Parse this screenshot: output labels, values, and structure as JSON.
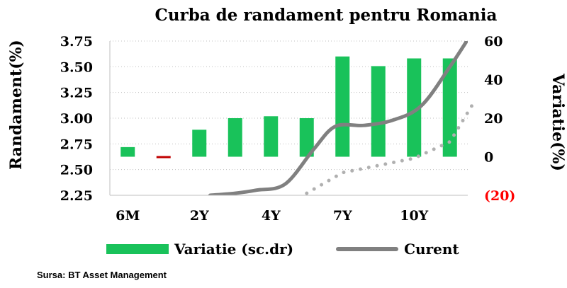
{
  "title": "Curba de randament pentru Romania",
  "source": "Sursa: BT Asset Management",
  "colors": {
    "bar": "#19c25a",
    "negative_bar": "#c00000",
    "line": "#808080",
    "dotted": "#b0b0b0",
    "grid": "#bfbfbf",
    "negative_tick": "#ff0000"
  },
  "chart_data": {
    "type": "bar",
    "title": "Curba de randament pentru Romania",
    "ylabel_left": "Randament(%)",
    "ylabel_right": "Variatie(%)",
    "x_tick_labels": [
      "6M",
      "2Y",
      "4Y",
      "7Y",
      "10Y"
    ],
    "y_left_ticks": [
      "2.25",
      "2.50",
      "2.75",
      "3.00",
      "3.25",
      "3.50",
      "3.75"
    ],
    "y_left_lim": [
      2.25,
      3.75
    ],
    "y_right_ticks": [
      "(20)",
      "0",
      "20",
      "40",
      "60"
    ],
    "y_right_lim": [
      -20,
      60
    ],
    "grid": true,
    "legend_position": "bottom",
    "series": [
      {
        "name": "Variatie (sc.dr)",
        "axis": "right",
        "type": "bar",
        "values": [
          5,
          -1,
          14,
          20,
          21,
          20,
          52,
          47,
          51,
          51
        ]
      },
      {
        "name": "Curent",
        "axis": "left",
        "type": "line",
        "x": [
          3.3,
          4,
          4.6,
          5.4,
          6.2,
          6.8,
          7.6,
          8.4,
          9.2,
          10,
          10.6
        ],
        "values": [
          2.25,
          2.27,
          2.3,
          2.36,
          2.7,
          2.92,
          2.93,
          2.98,
          3.12,
          3.5,
          3.82
        ]
      },
      {
        "type": "dotted-line",
        "axis": "left",
        "x": [
          6,
          7,
          8,
          9,
          10,
          10.7
        ],
        "values": [
          2.27,
          2.47,
          2.54,
          2.61,
          2.77,
          3.17
        ]
      }
    ]
  }
}
